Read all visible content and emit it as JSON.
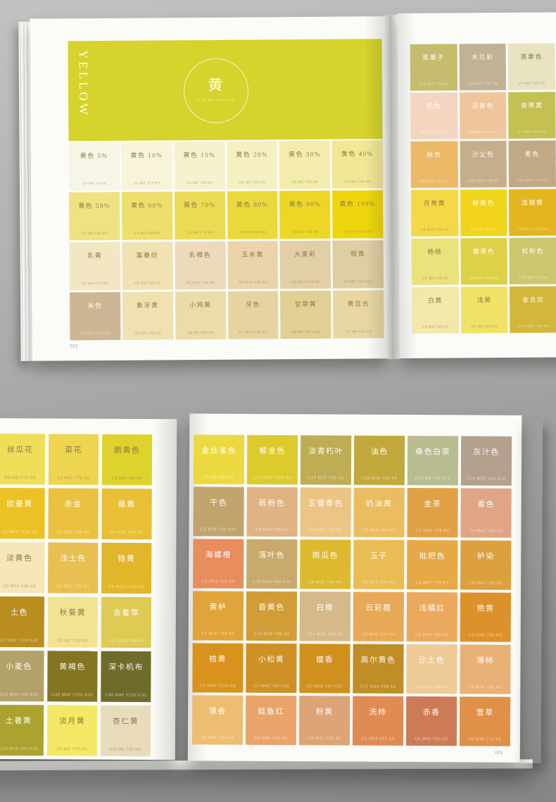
{
  "top_book": {
    "page_number": "022",
    "header": {
      "title": "YELLOW",
      "circle_title": "黄",
      "circle_code": "C10 M0 Y100 K0",
      "bg": "#d5d32c"
    },
    "left_swatches": [
      {
        "name": "黄色 5%",
        "code": "C0 M0 Y5 K0",
        "bg": "#f7f6e6",
        "ink": "dark"
      },
      {
        "name": "黄色 10%",
        "code": "C0 M0 Y10 K0",
        "bg": "#f7f4da",
        "ink": "dark"
      },
      {
        "name": "黄色 15%",
        "code": "C0 M0 Y15 K0",
        "bg": "#f6f2cf",
        "ink": "dark"
      },
      {
        "name": "黄色 20%",
        "code": "C0 M0 Y20 K0",
        "bg": "#f5f0c2",
        "ink": "dark"
      },
      {
        "name": "黄色 30%",
        "code": "C0 M0 Y30 K0",
        "bg": "#f3ecab",
        "ink": "dark"
      },
      {
        "name": "黄色 40%",
        "code": "C0 M0 Y40 K0",
        "bg": "#f1e795",
        "ink": "dark"
      },
      {
        "name": "黄色 50%",
        "code": "C0 M0 Y50 K0",
        "bg": "#eee282",
        "ink": "dark"
      },
      {
        "name": "黄色 60%",
        "code": "C0 M0 Y60 K0",
        "bg": "#ecdf6d",
        "ink": "dark"
      },
      {
        "name": "黄色 70%",
        "code": "C0 M0 Y70 K0",
        "bg": "#ebdb54",
        "ink": "dark"
      },
      {
        "name": "黄色 80%",
        "code": "C0 M0 Y80 K0",
        "bg": "#ebd83a",
        "ink": "dark"
      },
      {
        "name": "黄色 90%",
        "code": "C0 M0 Y90 K0",
        "bg": "#edd626",
        "ink": "dark"
      },
      {
        "name": "黄色 100%",
        "code": "C0 M0 Y100 K0",
        "bg": "#efd60c",
        "ink": "dark"
      },
      {
        "name": "乳黄",
        "code": "C0 M4 Y21 K0",
        "bg": "#f3e6c3",
        "ink": "dark"
      },
      {
        "name": "富春纺",
        "code": "C0 M5 Y30 K0",
        "bg": "#f1e2b4",
        "ink": "dark"
      },
      {
        "name": "乳褐色",
        "code": "C5 M11 Y23 K0",
        "bg": "#edd9bc",
        "ink": "dark"
      },
      {
        "name": "玉米黄",
        "code": "C5 M14 Y29 K0",
        "bg": "#ebd3ab",
        "ink": "dark"
      },
      {
        "name": "大麦彩",
        "code": "C9 M13 Y31 K0",
        "bg": "#e3cfa7",
        "ink": "dark"
      },
      {
        "name": "枝黄",
        "code": "C0 M9 Y24 K14",
        "bg": "#dfcda3",
        "ink": "dark"
      },
      {
        "name": "米色",
        "code": "C0 M15 Y30 K20",
        "bg": "#ccb694",
        "ink": "white"
      },
      {
        "name": "象牙黄",
        "code": "C0 M5 Y30 K0",
        "bg": "#efe1b0",
        "ink": "dark"
      },
      {
        "name": "小鸡黄",
        "code": "C0 M3 Y28 K6",
        "bg": "#ebdcaa",
        "ink": "dark"
      },
      {
        "name": "牙色",
        "code": "C7 M10 Y35 K0",
        "bg": "#e7d3a0",
        "ink": "dark"
      },
      {
        "name": "甘草黄",
        "code": "C0 M9 Y37 K10",
        "bg": "#e2cf94",
        "ink": "dark"
      },
      {
        "name": "黄百合",
        "code": "C7 M6 Y36 K0",
        "bg": "#e8d7a3",
        "ink": "dark"
      }
    ],
    "right_swatches": [
      {
        "name": "蒸栗子",
        "code": "C18 M15 Y52 K0",
        "bg": "#c6bc6e",
        "ink": "white"
      },
      {
        "name": "木兰彩",
        "code": "C18 M21 Y37 K0",
        "bg": "#c2b295",
        "ink": "white"
      },
      {
        "name": "蒸栗色",
        "code": "C4 M4 Y28 K0",
        "bg": "#e8e4c2",
        "ink": "dark"
      },
      {
        "name": "肌色",
        "code": "C0 M20 Y20 K0",
        "bg": "#f4d5c0",
        "ink": "white"
      },
      {
        "name": "淡香色",
        "code": "C0 M26 Y40 K0",
        "bg": "#efc69b",
        "ink": "white"
      },
      {
        "name": "香蕉黄",
        "code": "C0 M0 Y60 K20",
        "bg": "#c4c152",
        "ink": "white"
      },
      {
        "name": "肤色",
        "code": "C0 M30 Y60 K0",
        "bg": "#edb967",
        "ink": "white"
      },
      {
        "name": "沙尘色",
        "code": "C20 M30 Y45 K0",
        "bg": "#c7ae8a",
        "ink": "white"
      },
      {
        "name": "麦色",
        "code": "C20 M30 Y50 K0",
        "bg": "#c1a985",
        "ink": "white"
      },
      {
        "name": "月亮黄",
        "code": "C0 M10 Y70 K0",
        "bg": "#f4d846",
        "ink": "dark"
      },
      {
        "name": "鲜黄色",
        "code": "C0 M5 Y95 K0",
        "bg": "#f2d51b",
        "ink": "white"
      },
      {
        "name": "连翘黄",
        "code": "C8 M20 Y100 K0",
        "bg": "#e3b51e",
        "ink": "white"
      },
      {
        "name": "杨桃",
        "code": "C6 M0 Y58 K0",
        "bg": "#ebe27c",
        "ink": "dark"
      },
      {
        "name": "樱草色",
        "code": "C10 M0 Y80 K0",
        "bg": "#ddd247",
        "ink": "white"
      },
      {
        "name": "松粉色",
        "code": "C15 M0 Y70 K0",
        "bg": "#ccc76d",
        "ink": "white"
      },
      {
        "name": "白黄",
        "code": "C0 M0 Y40 K5",
        "bg": "#f2e8aa",
        "ink": "dark"
      },
      {
        "name": "浅黄",
        "code": "C0 M0 Y60 K0",
        "bg": "#f0e167",
        "ink": "dark"
      },
      {
        "name": "金合欢",
        "code": "C10 M15 Y80 K0",
        "bg": "#d3b73a",
        "ink": "white"
      }
    ]
  },
  "bottom_book": {
    "page_number": "025",
    "left_swatches": [
      {
        "name": "丝瓜花",
        "code": "C0 M5 Y73 K0",
        "bg": "#f0dd58",
        "ink": "dark"
      },
      {
        "name": "菜花",
        "code": "C2 M11 Y75 K0",
        "bg": "#eed550",
        "ink": "dark"
      },
      {
        "name": "鹅黄色",
        "code": "C5 M5 Y90 K0",
        "bg": "#ded32c",
        "ink": "dark"
      },
      {
        "name": "欧曼黄",
        "code": "C0 M22 Y100 K0",
        "bg": "#ecc124",
        "ink": "white"
      },
      {
        "name": "赤金",
        "code": "C0 M25 Y86 K0",
        "bg": "#eac23f",
        "ink": "white"
      },
      {
        "name": "藤黄",
        "code": "C0 M25 Y90 K0",
        "bg": "#e9bf35",
        "ink": "white"
      },
      {
        "name": "淡黄色",
        "code": "C0 M10 Y35 K0",
        "bg": "#f6e7b8",
        "ink": "dark"
      },
      {
        "name": "浅土色",
        "code": "C5 M21 Y70 K1",
        "bg": "#e7c051",
        "ink": "white"
      },
      {
        "name": "铬黄",
        "code": "C0 M20 Y100 K0",
        "bg": "#e2b62b",
        "ink": "white"
      },
      {
        "name": "土色",
        "code": "C0 M35 Y100 K30",
        "bg": "#b98d1e",
        "ink": "white"
      },
      {
        "name": "秋菊黄",
        "code": "C0 M7 Y50 K0",
        "bg": "#f2e393",
        "ink": "dark"
      },
      {
        "name": "含羞草",
        "code": "C10 M15 Y80 K0",
        "bg": "#dfca54",
        "ink": "white"
      },
      {
        "name": "小麦色",
        "code": "C14 M23 Y66 K29",
        "bg": "#b3a16a",
        "ink": "white"
      },
      {
        "name": "黄褐色",
        "code": "C30 M40 Y100 K30",
        "bg": "#857522",
        "ink": "white"
      },
      {
        "name": "深卡机布",
        "code": "C40 M40 Y100 K30",
        "bg": "#6f6b2b",
        "ink": "white"
      },
      {
        "name": "土著黄",
        "code": "C10 M15 Y90 K30",
        "bg": "#aca230",
        "ink": "white"
      },
      {
        "name": "淡月黄",
        "code": "C0 M0 Y70 K0",
        "bg": "#f5e866",
        "ink": "dark"
      },
      {
        "name": "杏仁黄",
        "code": "C3 M8 Y30 K0",
        "bg": "#e8dcbc",
        "ink": "dark"
      }
    ],
    "right_swatches": [
      {
        "name": "金丝雀色",
        "code": "C5 M0 Y85 K0",
        "bg": "#ecd940",
        "ink": "white"
      },
      {
        "name": "郁金色",
        "code": "C10 M10 Y100 K0",
        "bg": "#ddcb2d",
        "ink": "white"
      },
      {
        "name": "淡青朽叶",
        "code": "C23 M25 Y90 K0",
        "bg": "#bead53",
        "ink": "white"
      },
      {
        "name": "油色",
        "code": "C18 M26 Y90 K0",
        "bg": "#c2a93d",
        "ink": "white"
      },
      {
        "name": "桑色白茶",
        "code": "C18 M8 Y42 K10",
        "bg": "#b9bb91",
        "ink": "white"
      },
      {
        "name": "灰汁色",
        "code": "C20 M25 Y40 K10",
        "bg": "#b3a18d",
        "ink": "white"
      },
      {
        "name": "干色",
        "code": "C5 M28 Y58 K20",
        "bg": "#c1a46d",
        "ink": "white"
      },
      {
        "name": "砥粉色",
        "code": "C5 M32 Y50 K0",
        "bg": "#e0b384",
        "ink": "white"
      },
      {
        "name": "玉蜀黍色",
        "code": "C0 M25 Y57 K0",
        "bg": "#ecc483",
        "ink": "white"
      },
      {
        "name": "奶油黄",
        "code": "C0 M26 Y66 K0",
        "bg": "#e9bd60",
        "ink": "white"
      },
      {
        "name": "金茶",
        "code": "C2 M42 Y74 K0",
        "bg": "#e0a146",
        "ink": "white"
      },
      {
        "name": "香色",
        "code": "C4 M40 Y42 K0",
        "bg": "#e0a584",
        "ink": "white"
      },
      {
        "name": "海螺橙",
        "code": "C0 M53 Y65 K0",
        "bg": "#e88d5c",
        "ink": "white"
      },
      {
        "name": "落叶色",
        "code": "C15 M28 Y60 K10",
        "bg": "#c8aa6c",
        "ink": "white"
      },
      {
        "name": "南瓜色",
        "code": "C9 M20 Y89 K0",
        "bg": "#ddb930",
        "ink": "white"
      },
      {
        "name": "玉子",
        "code": "C0 M29 Y74 K0",
        "bg": "#eabc54",
        "ink": "white"
      },
      {
        "name": "枇杷色",
        "code": "C2 M37 Y79 K0",
        "bg": "#e7a945",
        "ink": "white"
      },
      {
        "name": "栌染",
        "code": "C8 M40 Y83 K0",
        "bg": "#dca03e",
        "ink": "white"
      },
      {
        "name": "黄栌",
        "code": "C5 M40 Y85 K0",
        "bg": "#e1a43b",
        "ink": "white"
      },
      {
        "name": "昏黄色",
        "code": "C13 M35 Y86 K0",
        "bg": "#d29d36",
        "ink": "white"
      },
      {
        "name": "白橡",
        "code": "C16 M30 Y60 K0",
        "bg": "#d3ba88",
        "ink": "white"
      },
      {
        "name": "云彩霞",
        "code": "C0 M40 Y70 K0",
        "bg": "#e8a956",
        "ink": "white"
      },
      {
        "name": "浅橘红",
        "code": "C0 M40 Y60 K0",
        "bg": "#eba95d",
        "ink": "white"
      },
      {
        "name": "艳黄",
        "code": "C0 M46 Y96 K5",
        "bg": "#dd912a",
        "ink": "white"
      },
      {
        "name": "桔黄",
        "code": "C0 M45 Y100 K8",
        "bg": "#d9931d",
        "ink": "white"
      },
      {
        "name": "小松黄",
        "code": "C0 M45 Y90 K15",
        "bg": "#cf9126",
        "ink": "white"
      },
      {
        "name": "檀香",
        "code": "C0 M48 Y97 K10",
        "bg": "#d0901e",
        "ink": "white"
      },
      {
        "name": "高尔黄色",
        "code": "C17 M44 Y99 K0",
        "bg": "#c08d27",
        "ink": "white"
      },
      {
        "name": "沙土色",
        "code": "C0 M20 Y40 K0",
        "bg": "#eeca96",
        "ink": "white"
      },
      {
        "name": "薄柿",
        "code": "C0 M34 Y52 K0",
        "bg": "#e9b075",
        "ink": "white"
      },
      {
        "name": "薄香",
        "code": "C0 M30 Y60 K0",
        "bg": "#edbd72",
        "ink": "white"
      },
      {
        "name": "鲑鱼红",
        "code": "C0 M40 Y60 K0",
        "bg": "#eaa369",
        "ink": "white"
      },
      {
        "name": "粉黄",
        "code": "C6 M42 Y55 K0",
        "bg": "#dda475",
        "ink": "white"
      },
      {
        "name": "洗柿",
        "code": "C0 M53 Y67 K0",
        "bg": "#e08b53",
        "ink": "white"
      },
      {
        "name": "赤香",
        "code": "C5 M55 Y60 K0",
        "bg": "#cd7b56",
        "ink": "white"
      },
      {
        "name": "萱草",
        "code": "C0 M49 Y72 K0",
        "bg": "#e09047",
        "ink": "white"
      }
    ]
  }
}
